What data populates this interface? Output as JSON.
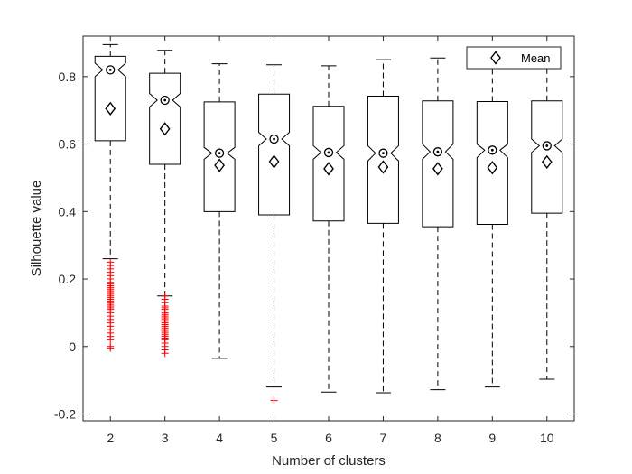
{
  "chart_data": {
    "type": "box",
    "xlabel": "Number of clusters",
    "ylabel": "Silhouette value",
    "categories": [
      "2",
      "3",
      "4",
      "5",
      "6",
      "7",
      "8",
      "9",
      "10"
    ],
    "ylim": [
      -0.22,
      0.92
    ],
    "yticks": [
      -0.2,
      0,
      0.2,
      0.4,
      0.6,
      0.8
    ],
    "ytick_labels": [
      "-0.2",
      "0",
      "0.2",
      "0.4",
      "0.6",
      "0.8"
    ],
    "grid": false,
    "notched": true,
    "legend": {
      "position": "top-right",
      "entries": [
        "Mean"
      ]
    },
    "boxes": [
      {
        "category": "2",
        "lower_whisker": 0.26,
        "q1": 0.61,
        "median": 0.82,
        "q3": 0.86,
        "upper_whisker": 0.895,
        "notch_low": 0.8,
        "notch_high": 0.84,
        "mean": 0.705,
        "outliers": [
          0.25,
          0.24,
          0.23,
          0.22,
          0.21,
          0.2,
          0.19,
          0.185,
          0.18,
          0.175,
          0.17,
          0.165,
          0.16,
          0.155,
          0.15,
          0.145,
          0.14,
          0.135,
          0.13,
          0.125,
          0.12,
          0.115,
          0.11,
          0.1,
          0.09,
          0.08,
          0.07,
          0.06,
          0.05,
          0.04,
          0.03,
          0.02,
          0.0,
          -0.005
        ]
      },
      {
        "category": "3",
        "lower_whisker": 0.15,
        "q1": 0.54,
        "median": 0.73,
        "q3": 0.81,
        "upper_whisker": 0.878,
        "notch_low": 0.71,
        "notch_high": 0.75,
        "mean": 0.645,
        "outliers": [
          0.15,
          0.14,
          0.13,
          0.12,
          0.115,
          0.11,
          0.1,
          0.095,
          0.09,
          0.085,
          0.08,
          0.075,
          0.07,
          0.065,
          0.06,
          0.055,
          0.05,
          0.045,
          0.04,
          0.035,
          0.03,
          0.025,
          0.02,
          0.01,
          0.0,
          -0.01,
          -0.02
        ]
      },
      {
        "category": "4",
        "lower_whisker": -0.035,
        "q1": 0.4,
        "median": 0.573,
        "q3": 0.725,
        "upper_whisker": 0.838,
        "notch_low": 0.555,
        "notch_high": 0.59,
        "mean": 0.537,
        "outliers": []
      },
      {
        "category": "5",
        "lower_whisker": -0.12,
        "q1": 0.39,
        "median": 0.615,
        "q3": 0.748,
        "upper_whisker": 0.835,
        "notch_low": 0.595,
        "notch_high": 0.635,
        "mean": 0.548,
        "outliers": [
          -0.16
        ]
      },
      {
        "category": "6",
        "lower_whisker": -0.135,
        "q1": 0.372,
        "median": 0.575,
        "q3": 0.712,
        "upper_whisker": 0.832,
        "notch_low": 0.555,
        "notch_high": 0.595,
        "mean": 0.527,
        "outliers": []
      },
      {
        "category": "7",
        "lower_whisker": -0.137,
        "q1": 0.365,
        "median": 0.573,
        "q3": 0.742,
        "upper_whisker": 0.85,
        "notch_low": 0.55,
        "notch_high": 0.595,
        "mean": 0.532,
        "outliers": []
      },
      {
        "category": "8",
        "lower_whisker": -0.128,
        "q1": 0.355,
        "median": 0.577,
        "q3": 0.728,
        "upper_whisker": 0.855,
        "notch_low": 0.555,
        "notch_high": 0.6,
        "mean": 0.527,
        "outliers": []
      },
      {
        "category": "9",
        "lower_whisker": -0.12,
        "q1": 0.362,
        "median": 0.582,
        "q3": 0.726,
        "upper_whisker": 0.855,
        "notch_low": 0.56,
        "notch_high": 0.6,
        "mean": 0.53,
        "outliers": []
      },
      {
        "category": "10",
        "lower_whisker": -0.097,
        "q1": 0.395,
        "median": 0.595,
        "q3": 0.728,
        "upper_whisker": 0.855,
        "notch_low": 0.575,
        "notch_high": 0.615,
        "mean": 0.547,
        "outliers": []
      }
    ],
    "colors": {
      "box": "#000000",
      "whisker": "#000000",
      "outlier": "#ff0000",
      "axis": "#262626"
    }
  }
}
